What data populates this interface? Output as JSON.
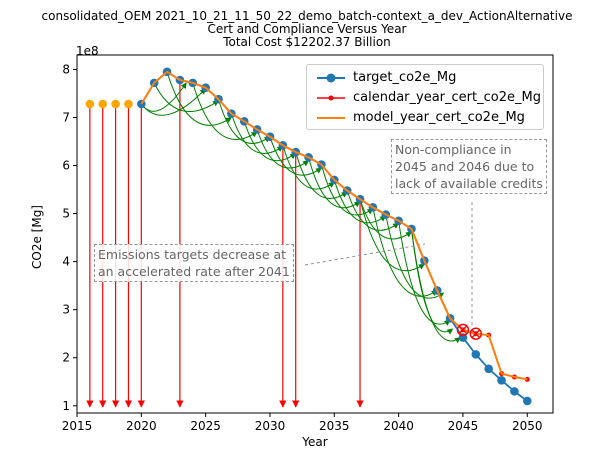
{
  "figure": {
    "title_lines": [
      "consolidated_OEM 2021_10_21_11_50_22_demo_batch-context_a_dev_ActionAlternative",
      "Cert and Compliance Versus Year",
      "Total Cost $12202.37 Billion"
    ]
  },
  "annotations": {
    "emissions_note": [
      "Emissions targets decrease at",
      "an accelerated rate after 2041"
    ],
    "noncompliance_note": [
      "Non-compliance in",
      "2045 and 2046 due to",
      "lack of available credits"
    ]
  },
  "colors": {
    "target": "#1f77b4",
    "calendar": "#ff0000",
    "model": "#ff7f0e",
    "credit_arrows": "#008000",
    "expire_arrows": "#ff0000",
    "early_points": "#ffa500"
  },
  "chart_data": {
    "type": "line",
    "xlabel": "Year",
    "ylabel": "CO2e [Mg]",
    "y_scale_label": "1e8",
    "xlim": [
      2015,
      2052
    ],
    "ylim": [
      0.85,
      8.3
    ],
    "x_ticks": [
      2015,
      2020,
      2025,
      2030,
      2035,
      2040,
      2045,
      2050
    ],
    "y_ticks": [
      1,
      2,
      3,
      4,
      5,
      6,
      7,
      8
    ],
    "legend_position": "top-right",
    "series": [
      {
        "name": "target_co2e_Mg",
        "x": [
          2020,
          2021,
          2022,
          2023,
          2024,
          2025,
          2026,
          2027,
          2028,
          2029,
          2030,
          2031,
          2032,
          2033,
          2034,
          2035,
          2036,
          2037,
          2038,
          2039,
          2040,
          2041,
          2042,
          2043,
          2044,
          2045,
          2046,
          2047,
          2048,
          2049,
          2050
        ],
        "values": [
          7.28,
          7.72,
          7.95,
          7.78,
          7.72,
          7.62,
          7.38,
          7.08,
          6.92,
          6.75,
          6.6,
          6.42,
          6.28,
          6.17,
          6.02,
          5.7,
          5.48,
          5.3,
          5.13,
          4.98,
          4.85,
          4.68,
          4.02,
          3.4,
          2.82,
          2.42,
          2.07,
          1.77,
          1.53,
          1.3,
          1.1
        ]
      },
      {
        "name": "calendar_year_cert_co2e_Mg",
        "x": [
          2045,
          2046,
          2047,
          2048,
          2049,
          2050
        ],
        "values": [
          2.58,
          2.5,
          2.47,
          1.67,
          1.6,
          1.55
        ]
      },
      {
        "name": "model_year_cert_co2e_Mg",
        "x": [
          2020,
          2021,
          2022,
          2023,
          2024,
          2025,
          2026,
          2027,
          2028,
          2029,
          2030,
          2031,
          2032,
          2033,
          2034,
          2035,
          2036,
          2037,
          2038,
          2039,
          2040,
          2041,
          2042,
          2043,
          2044,
          2045,
          2046,
          2047,
          2048,
          2049,
          2050
        ],
        "values": [
          7.28,
          7.72,
          7.95,
          7.78,
          7.72,
          7.62,
          7.38,
          7.08,
          6.92,
          6.75,
          6.6,
          6.42,
          6.28,
          6.17,
          6.02,
          5.7,
          5.48,
          5.3,
          5.13,
          4.98,
          4.85,
          4.68,
          4.02,
          3.4,
          2.82,
          2.58,
          2.5,
          2.47,
          1.67,
          1.6,
          1.55
        ]
      }
    ],
    "early_points": {
      "x": [
        2016,
        2017,
        2018,
        2019
      ],
      "values": [
        7.28,
        7.28,
        7.28,
        7.28
      ]
    },
    "expire_arrows_x": [
      2016,
      2017,
      2018,
      2019,
      2020,
      2023,
      2031,
      2032,
      2037
    ],
    "noncompliance_x": [
      2045,
      2046
    ],
    "credit_arrows": [
      [
        2020,
        7.28,
        2025,
        7.6
      ],
      [
        2020,
        7.28,
        2023.5,
        7.72
      ],
      [
        2021,
        7.72,
        2026,
        7.35
      ],
      [
        2022,
        7.95,
        2027,
        7.0
      ],
      [
        2024,
        7.72,
        2029,
        6.7
      ],
      [
        2026,
        7.38,
        2030,
        6.6
      ],
      [
        2027,
        7.08,
        2031,
        6.4
      ],
      [
        2028,
        6.92,
        2032,
        6.25
      ],
      [
        2029,
        6.75,
        2033,
        6.1
      ],
      [
        2030,
        6.6,
        2034,
        5.95
      ],
      [
        2031,
        6.42,
        2035,
        5.65
      ],
      [
        2032,
        6.28,
        2036,
        5.45
      ],
      [
        2033,
        6.17,
        2037,
        5.25
      ],
      [
        2034,
        6.02,
        2038,
        5.1
      ],
      [
        2035,
        5.7,
        2039,
        4.95
      ],
      [
        2036,
        5.48,
        2040,
        4.8
      ],
      [
        2037,
        5.3,
        2041,
        4.62
      ],
      [
        2037,
        5.3,
        2042,
        3.95
      ],
      [
        2038,
        5.13,
        2043,
        3.4
      ],
      [
        2039,
        4.98,
        2043.5,
        3.35
      ],
      [
        2040,
        4.85,
        2044,
        2.78
      ],
      [
        2041,
        4.68,
        2044.8,
        2.42
      ],
      [
        2041,
        4.68,
        2044.2,
        2.6
      ]
    ]
  }
}
